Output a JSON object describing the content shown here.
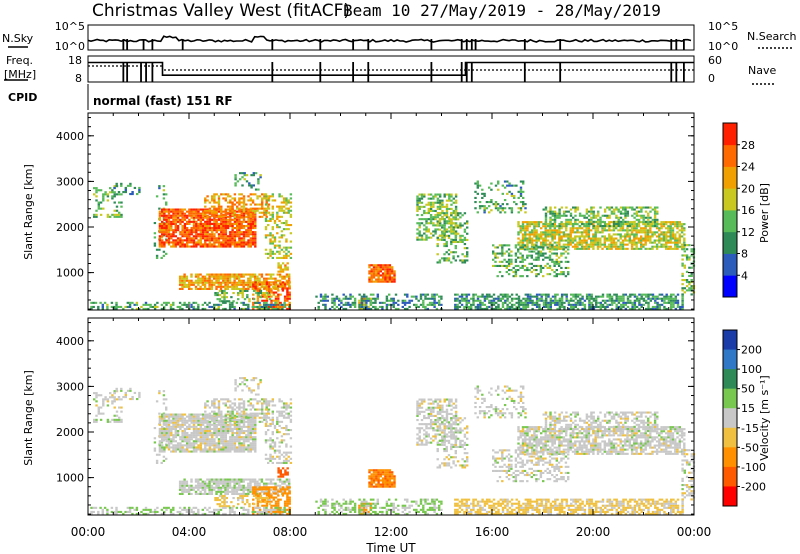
{
  "chart_data": [
    {
      "type": "line",
      "panel": "sky-search-noise",
      "title": "Christmas Valley West (fitACF)",
      "subtitle": "Beam 10 27/May/2019 - 28/May/2019",
      "left_label": "N.Sky",
      "right_label": "N.Search",
      "left_ticks": [
        "10^5",
        "10^0"
      ],
      "right_ticks": [
        "10^5",
        "10^0"
      ]
    },
    {
      "type": "line",
      "panel": "frequency-nave",
      "left_label_lines": [
        "Freq.",
        "[MHz]"
      ],
      "right_label": "Nave",
      "left_ticks": [
        "18",
        "8"
      ],
      "right_ticks": [
        "60",
        "0"
      ],
      "freq_series": {
        "x_hours": [
          0,
          2.95,
          2.95,
          14.95,
          14.95,
          24
        ],
        "y_mhz": [
          15.5,
          15.5,
          10.6,
          10.6,
          15.5,
          15.5
        ]
      }
    },
    {
      "type": "table",
      "panel": "cpid",
      "label": "CPID",
      "text": "normal (fast) 151 RF"
    },
    {
      "type": "heatmap",
      "panel": "power",
      "ylabel": "Slant Range [km]",
      "ylim": [
        180,
        4500
      ],
      "xlim_hours": [
        0,
        24
      ],
      "yticks": [
        1000,
        2000,
        3000,
        4000
      ],
      "colorbar": {
        "label": "Power [dB]",
        "ticks": [
          4,
          8,
          12,
          16,
          20,
          24,
          28
        ],
        "range": [
          0,
          32
        ],
        "colors": [
          "#0000ff",
          "#2b5bbb",
          "#2e8b57",
          "#57bb5a",
          "#c8c820",
          "#f0a000",
          "#ff6a00",
          "#ff2000"
        ]
      }
    },
    {
      "type": "heatmap",
      "panel": "velocity",
      "ylabel": "Slant Range [km]",
      "xlabel": "Time UT",
      "ylim": [
        180,
        4500
      ],
      "xlim_hours": [
        0,
        24
      ],
      "yticks": [
        1000,
        2000,
        3000,
        4000
      ],
      "xticks": [
        "00:00",
        "04:00",
        "08:00",
        "12:00",
        "16:00",
        "20:00",
        "00:00"
      ],
      "colorbar": {
        "label": "Velocity [m s⁻¹]",
        "ticks": [
          "200",
          "100",
          "50",
          "15",
          "-15",
          "-50",
          "-100",
          "-200"
        ],
        "colors": [
          "#1a3ca8",
          "#2f78c8",
          "#2e8b57",
          "#78c850",
          "#c8c8c8",
          "#f0c040",
          "#ff9000",
          "#ff5a00",
          "#ff0000"
        ]
      }
    }
  ],
  "echo_regions": [
    {
      "t": [
        0.2,
        1.3
      ],
      "r": [
        2200,
        2900
      ],
      "p": 14,
      "v": 0,
      "d": 0.35
    },
    {
      "t": [
        1.0,
        2.0
      ],
      "r": [
        2700,
        2950
      ],
      "p": 10,
      "v": 0,
      "d": 0.25
    },
    {
      "t": [
        2.6,
        3.1
      ],
      "r": [
        1300,
        2900
      ],
      "p": 12,
      "v": 0,
      "d": 0.15
    },
    {
      "t": [
        2.8,
        6.6
      ],
      "r": [
        1550,
        2400
      ],
      "p": 27,
      "v": 0,
      "d": 0.85
    },
    {
      "t": [
        4.6,
        7.2
      ],
      "r": [
        2200,
        2700
      ],
      "p": 23,
      "v": 0,
      "d": 0.55
    },
    {
      "t": [
        5.8,
        6.8
      ],
      "r": [
        2800,
        3200
      ],
      "p": 12,
      "v": 0,
      "d": 0.3
    },
    {
      "t": [
        7.0,
        8.0
      ],
      "r": [
        1300,
        2700
      ],
      "p": 18,
      "v": 0,
      "d": 0.4
    },
    {
      "t": [
        3.6,
        8.0
      ],
      "r": [
        620,
        950
      ],
      "p": 22,
      "v": 5,
      "d": 0.75
    },
    {
      "t": [
        6.5,
        8.0
      ],
      "r": [
        180,
        800
      ],
      "p": 26,
      "v": -80,
      "d": 0.6
    },
    {
      "t": [
        5.0,
        7.2
      ],
      "r": [
        350,
        620
      ],
      "p": 14,
      "v": -30,
      "d": 0.35
    },
    {
      "t": [
        7.5,
        7.9
      ],
      "r": [
        1000,
        1200
      ],
      "p": 20,
      "v": -150,
      "d": 0.6
    },
    {
      "t": [
        11.1,
        12.1
      ],
      "r": [
        780,
        1180
      ],
      "p": 27,
      "v": -90,
      "d": 0.85
    },
    {
      "t": [
        10.7,
        11.2
      ],
      "r": [
        180,
        450
      ],
      "p": 20,
      "v": -70,
      "d": 0.7
    },
    {
      "t": [
        13.0,
        14.6
      ],
      "r": [
        1700,
        2700
      ],
      "p": 15,
      "v": 0,
      "d": 0.5
    },
    {
      "t": [
        13.8,
        15.0
      ],
      "r": [
        1200,
        2300
      ],
      "p": 14,
      "v": 0,
      "d": 0.4
    },
    {
      "t": [
        15.3,
        17.3
      ],
      "r": [
        2300,
        3000
      ],
      "p": 12,
      "v": 0,
      "d": 0.3
    },
    {
      "t": [
        17.0,
        23.6
      ],
      "r": [
        1500,
        2100
      ],
      "p": 18,
      "v": 0,
      "d": 0.7
    },
    {
      "t": [
        18.0,
        22.5
      ],
      "r": [
        2000,
        2450
      ],
      "p": 14,
      "v": 0,
      "d": 0.5
    },
    {
      "t": [
        16.0,
        19.0
      ],
      "r": [
        900,
        1600
      ],
      "p": 13,
      "v": 0,
      "d": 0.4
    },
    {
      "t": [
        14.5,
        23.5
      ],
      "r": [
        180,
        500
      ],
      "p": 11,
      "v": -25,
      "d": 0.65
    },
    {
      "t": [
        9.0,
        14.0
      ],
      "r": [
        180,
        500
      ],
      "p": 10,
      "v": 20,
      "d": 0.45
    },
    {
      "t": [
        23.5,
        24.0
      ],
      "r": [
        500,
        1600
      ],
      "p": 15,
      "v": 0,
      "d": 0.4
    },
    {
      "t": [
        0.0,
        8.0
      ],
      "r": [
        180,
        330
      ],
      "p": 12,
      "v": 10,
      "d": 0.45
    }
  ]
}
